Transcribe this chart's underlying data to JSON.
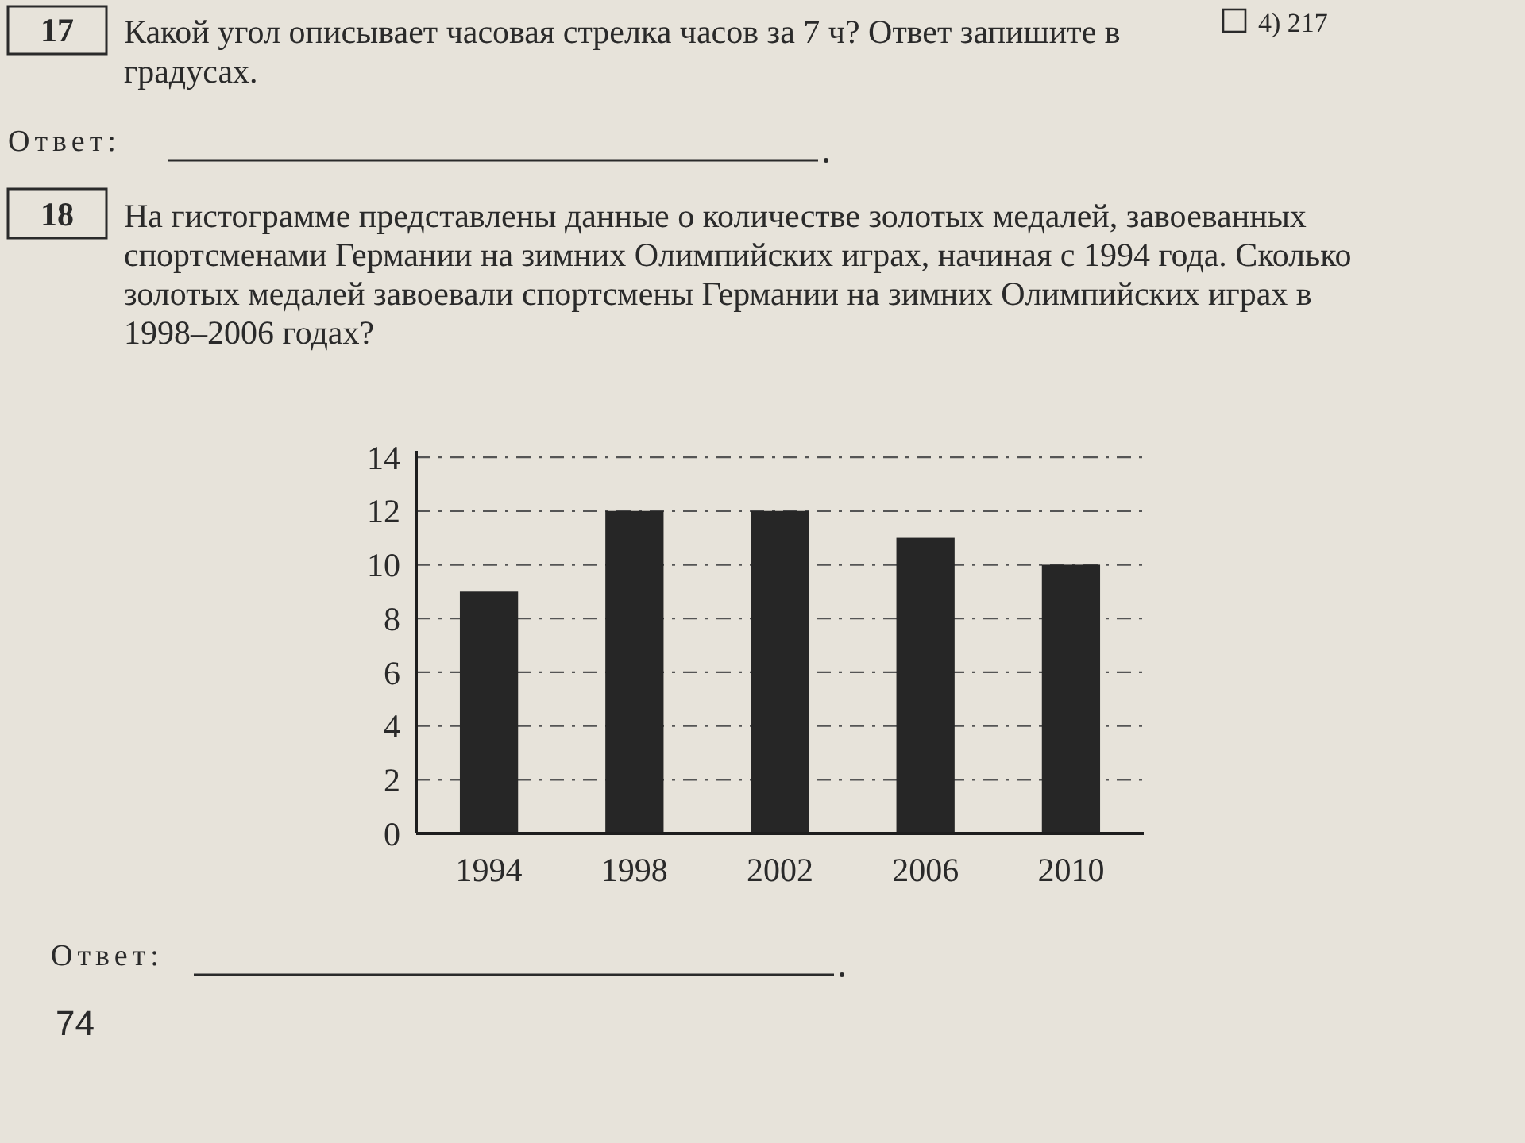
{
  "chart_data": {
    "type": "bar",
    "title": "На гистограмме представлены данные о количестве золотых медалей, завоеванных спортсменами Германии на зимних Олимпийских играх, начиная с 1994 года. Сколько золотых медалей завоевали спортсмены Германии на зимних Олимпийских играх в 1998–2006 годах?",
    "categories": [
      "1994",
      "1998",
      "2002",
      "2006",
      "2010"
    ],
    "values": [
      9,
      12,
      12,
      11,
      10
    ],
    "color": "#262626",
    "ylim": [
      0,
      14
    ],
    "yticks": [
      0,
      2,
      4,
      6,
      8,
      10,
      12,
      14
    ],
    "grid": "y",
    "annotations": [
      "4) 217",
      "17",
      "Какой угол описывает часовая стрелка часов за 7 ч? Ответ запишите в градусах.",
      "Ответ:",
      "18",
      "Ответ:",
      "74"
    ]
  }
}
